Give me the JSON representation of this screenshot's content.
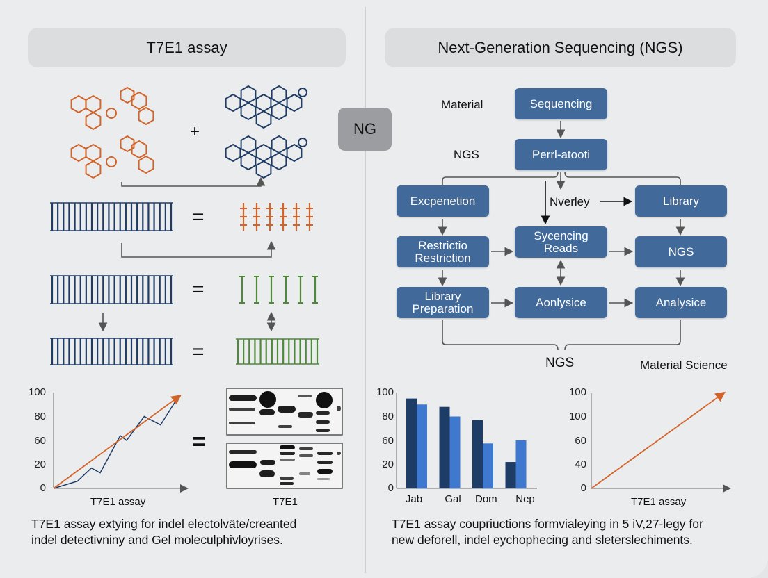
{
  "left_panel": {
    "title": "T7E1 assay",
    "plus": "+",
    "equals": "=",
    "line_chart_xlabel": "T7E1 assay",
    "gel_label": "T7E1",
    "caption_line1": "T7E1 assay extying for indel electolväte/creanted",
    "caption_line2": "indel detectivniny and Gel moleculphivloyrises."
  },
  "center_badge": "NG",
  "right_panel": {
    "title": "Next-Generation Sequencing (NGS)",
    "labels": {
      "material": "Material",
      "ngs_side": "NGS",
      "nverley": "Nverley",
      "ngs_bottom": "NGS",
      "material_science": "Material Science"
    },
    "flow_boxes": {
      "sequencing": "Sequencing",
      "perrl": "Perrl-atooti",
      "excpenetion": "Excpenetion",
      "library": "Library",
      "restrictio": "Restrictio Restriction",
      "sycencing_reads": "Sycencing Reads",
      "ngs": "NGS",
      "library_preparation": "Library Preparation",
      "aonlysice": "Aonlysice",
      "analysice": "Analysice"
    },
    "caption_line1": "T7E1 assay coupriuctions formvialeying in 5 iV,27-legy for",
    "caption_line2": "new deforell, indel eychophecing and sleterslechiments."
  },
  "colors": {
    "flow_box": "#41699a",
    "orange": "#d2642a",
    "navy": "#1f3c64",
    "green": "#4f8a3a",
    "bar_dark": "#1e3d66",
    "bar_light": "#3f78cf"
  },
  "chart_data": [
    {
      "type": "line",
      "yticks": [
        "0",
        "20",
        "60",
        "80",
        "100"
      ],
      "xlabel": "T7E1 assay",
      "series": [
        {
          "color": "#1f3c64",
          "points": [
            [
              0,
              0
            ],
            [
              19,
              6
            ],
            [
              30,
              17
            ],
            [
              37,
              13
            ],
            [
              53,
              64
            ],
            [
              58,
              60
            ],
            [
              72,
              80
            ],
            [
              85,
              73
            ],
            [
              100,
              98
            ]
          ]
        },
        {
          "color": "#d2642a",
          "points": [
            [
              0,
              0
            ],
            [
              100,
              97
            ]
          ]
        }
      ]
    },
    {
      "type": "bar",
      "yticks": [
        "0",
        "20",
        "60",
        "80",
        "100"
      ],
      "categories": [
        "Jab",
        "Gal",
        "Dom",
        "Nep"
      ],
      "series": [
        {
          "color": "#1e3d66",
          "values": [
            95,
            88,
            77,
            24
          ]
        },
        {
          "color": "#3f78cf",
          "values": [
            90,
            80,
            55,
            60
          ]
        }
      ]
    },
    {
      "type": "line",
      "yticks": [
        "0",
        "40",
        "60",
        "100",
        "100"
      ],
      "xlabel": "T7E1 assay",
      "series": [
        {
          "color": "#d2642a",
          "points": [
            [
              0,
              0
            ],
            [
              100,
              100
            ]
          ]
        }
      ]
    }
  ]
}
